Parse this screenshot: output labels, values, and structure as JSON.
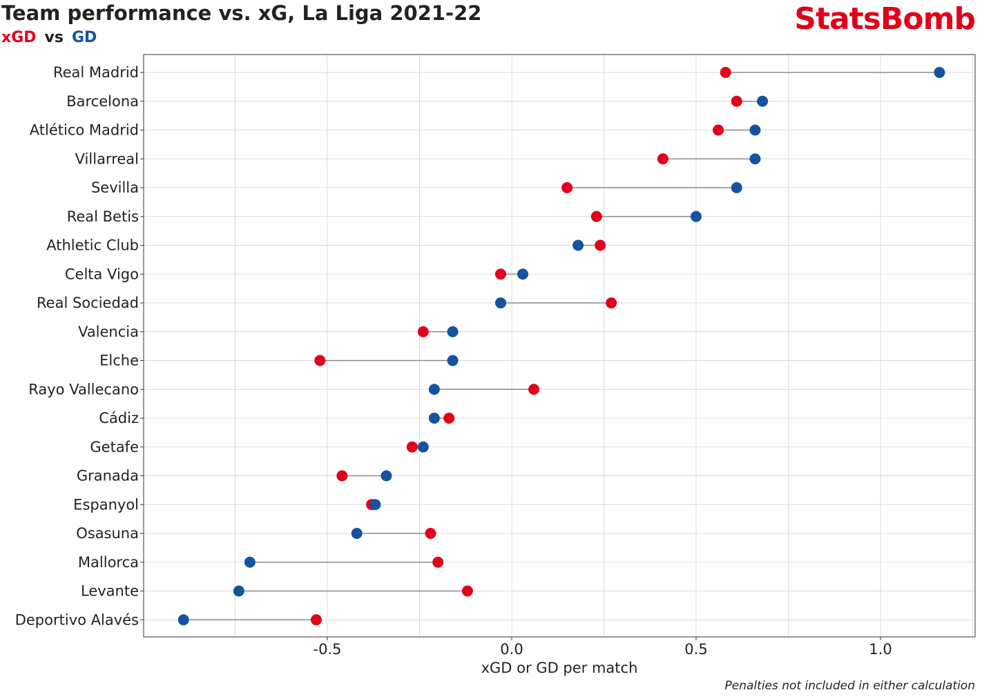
{
  "header": {
    "title": "Team performance vs. xG, La Liga 2021-22",
    "subtitle_xgd": "xGD",
    "subtitle_vs": "vs",
    "subtitle_gd": "GD"
  },
  "brand": {
    "logo_text": "StatsBomb",
    "color": "#e2001a"
  },
  "footnote": "Penalties not included in either calculation",
  "colors": {
    "xgd": "#e2001a",
    "gd": "#1553a0",
    "connector": "#8a8a8a"
  },
  "chart_data": {
    "type": "scatter",
    "subtype": "dumbbell",
    "xlabel": "xGD or GD per match",
    "xlim": [
      -1.0,
      1.26
    ],
    "xticks": [
      "-0.5",
      "0.0",
      "0.5",
      "1.0"
    ],
    "xtick_values": [
      -0.5,
      0.0,
      0.5,
      1.0
    ],
    "grid": true,
    "series": [
      {
        "name": "xGD",
        "color": "#e2001a"
      },
      {
        "name": "GD",
        "color": "#1553a0"
      }
    ],
    "teams": [
      {
        "team": "Real Madrid",
        "xgd": 0.58,
        "gd": 1.16
      },
      {
        "team": "Barcelona",
        "xgd": 0.61,
        "gd": 0.68
      },
      {
        "team": "Atlético Madrid",
        "xgd": 0.56,
        "gd": 0.66
      },
      {
        "team": "Villarreal",
        "xgd": 0.41,
        "gd": 0.66
      },
      {
        "team": "Sevilla",
        "xgd": 0.15,
        "gd": 0.61
      },
      {
        "team": "Real Betis",
        "xgd": 0.23,
        "gd": 0.5
      },
      {
        "team": "Athletic Club",
        "xgd": 0.24,
        "gd": 0.18
      },
      {
        "team": "Celta Vigo",
        "xgd": -0.03,
        "gd": 0.03
      },
      {
        "team": "Real Sociedad",
        "xgd": 0.27,
        "gd": -0.03
      },
      {
        "team": "Valencia",
        "xgd": -0.24,
        "gd": -0.16
      },
      {
        "team": "Elche",
        "xgd": -0.52,
        "gd": -0.16
      },
      {
        "team": "Rayo Vallecano",
        "xgd": 0.06,
        "gd": -0.21
      },
      {
        "team": "Cádiz",
        "xgd": -0.17,
        "gd": -0.21
      },
      {
        "team": "Getafe",
        "xgd": -0.27,
        "gd": -0.24
      },
      {
        "team": "Granada",
        "xgd": -0.46,
        "gd": -0.34
      },
      {
        "team": "Espanyol",
        "xgd": -0.38,
        "gd": -0.37
      },
      {
        "team": "Osasuna",
        "xgd": -0.22,
        "gd": -0.42
      },
      {
        "team": "Mallorca",
        "xgd": -0.2,
        "gd": -0.71
      },
      {
        "team": "Levante",
        "xgd": -0.12,
        "gd": -0.74
      },
      {
        "team": "Deportivo Alavés",
        "xgd": -0.53,
        "gd": -0.89
      }
    ]
  }
}
